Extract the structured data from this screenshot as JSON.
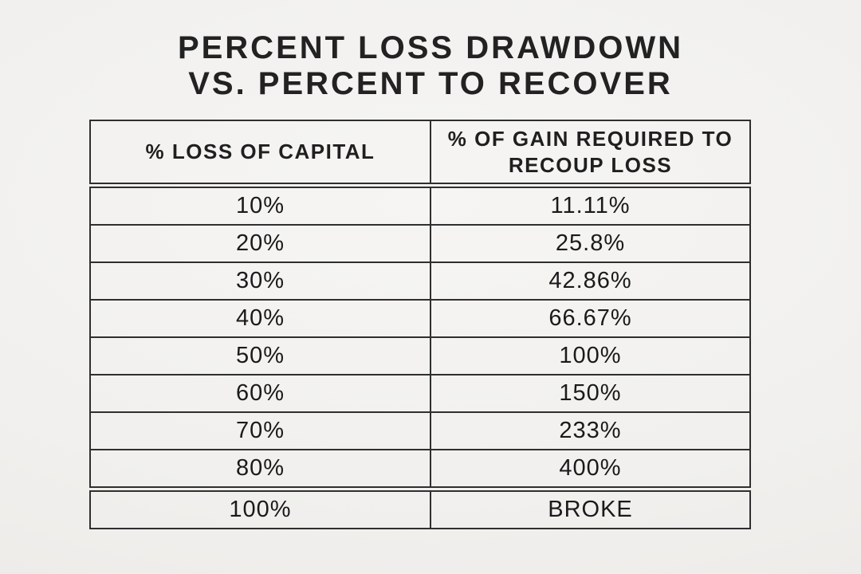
{
  "title": {
    "line1": "PERCENT LOSS DRAWDOWN",
    "line2": "VS. PERCENT TO RECOVER"
  },
  "chart_data": {
    "type": "table",
    "title": "PERCENT LOSS DRAWDOWN VS. PERCENT TO RECOVER",
    "columns": [
      "% LOSS OF CAPITAL",
      "% OF GAIN REQUIRED TO RECOUP LOSS"
    ],
    "rows": [
      [
        "10%",
        "11.11%"
      ],
      [
        "20%",
        "25.8%"
      ],
      [
        "30%",
        "42.86%"
      ],
      [
        "40%",
        "66.67%"
      ],
      [
        "50%",
        "100%"
      ],
      [
        "60%",
        "150%"
      ],
      [
        "70%",
        "233%"
      ],
      [
        "80%",
        "400%"
      ],
      [
        "100%",
        "BROKE"
      ]
    ]
  },
  "colors": {
    "background": "#f1f0ee",
    "table_border": "#2f2f2f",
    "text": "#1c1c1c"
  }
}
